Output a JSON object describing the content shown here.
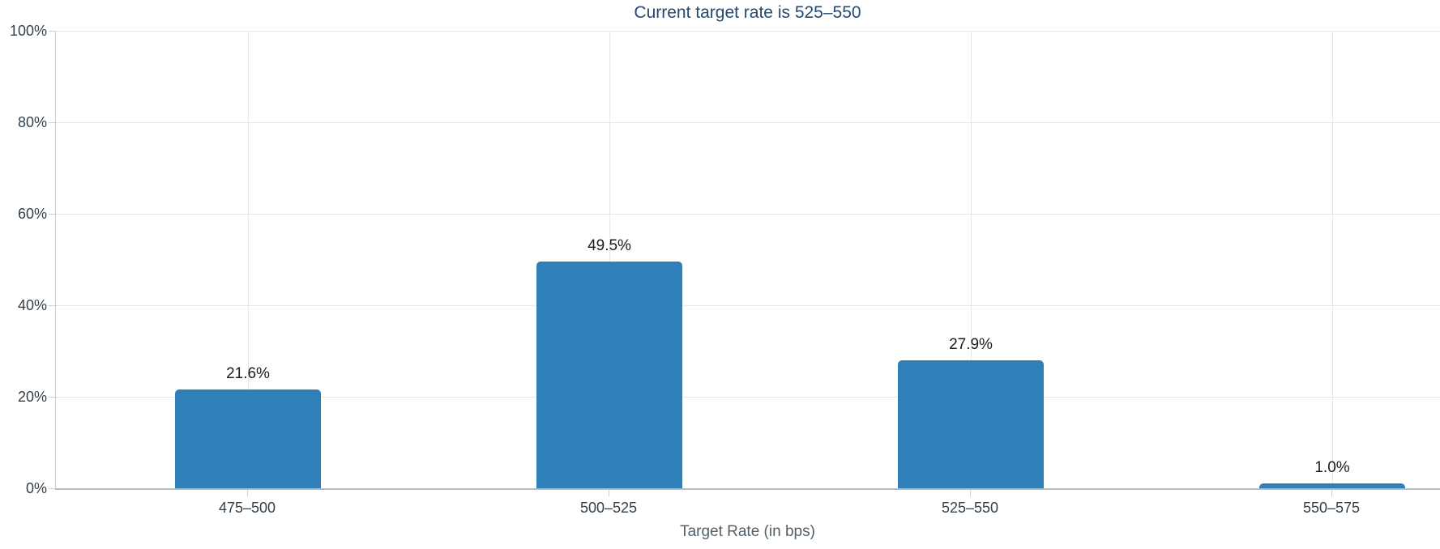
{
  "chart_data": {
    "type": "bar",
    "title": "Current target rate is 525–550",
    "categories": [
      "475–500",
      "500–525",
      "525–550",
      "550–575"
    ],
    "values": [
      21.6,
      49.5,
      27.9,
      1.0
    ],
    "value_labels": [
      "21.6%",
      "49.5%",
      "27.9%",
      "1.0%"
    ],
    "xlabel": "Target Rate (in bps)",
    "ylabel": "",
    "ylim": [
      0,
      100
    ],
    "ytick_labels": [
      "0%",
      "20%",
      "40%",
      "60%",
      "80%",
      "100%"
    ],
    "grid": true,
    "legend": false,
    "bar_color": "#2f80b9",
    "title_color": "#254970",
    "tick_label_color": "#333f48",
    "value_label_color": "#1b1b1b",
    "xlabel_color": "#52606b",
    "gridline_color": "#e7e7e7",
    "axis_left_color": "#c9cccd",
    "axis_bottom_color": "#b6babd",
    "tick_mark_color": "#cdd0d2"
  }
}
